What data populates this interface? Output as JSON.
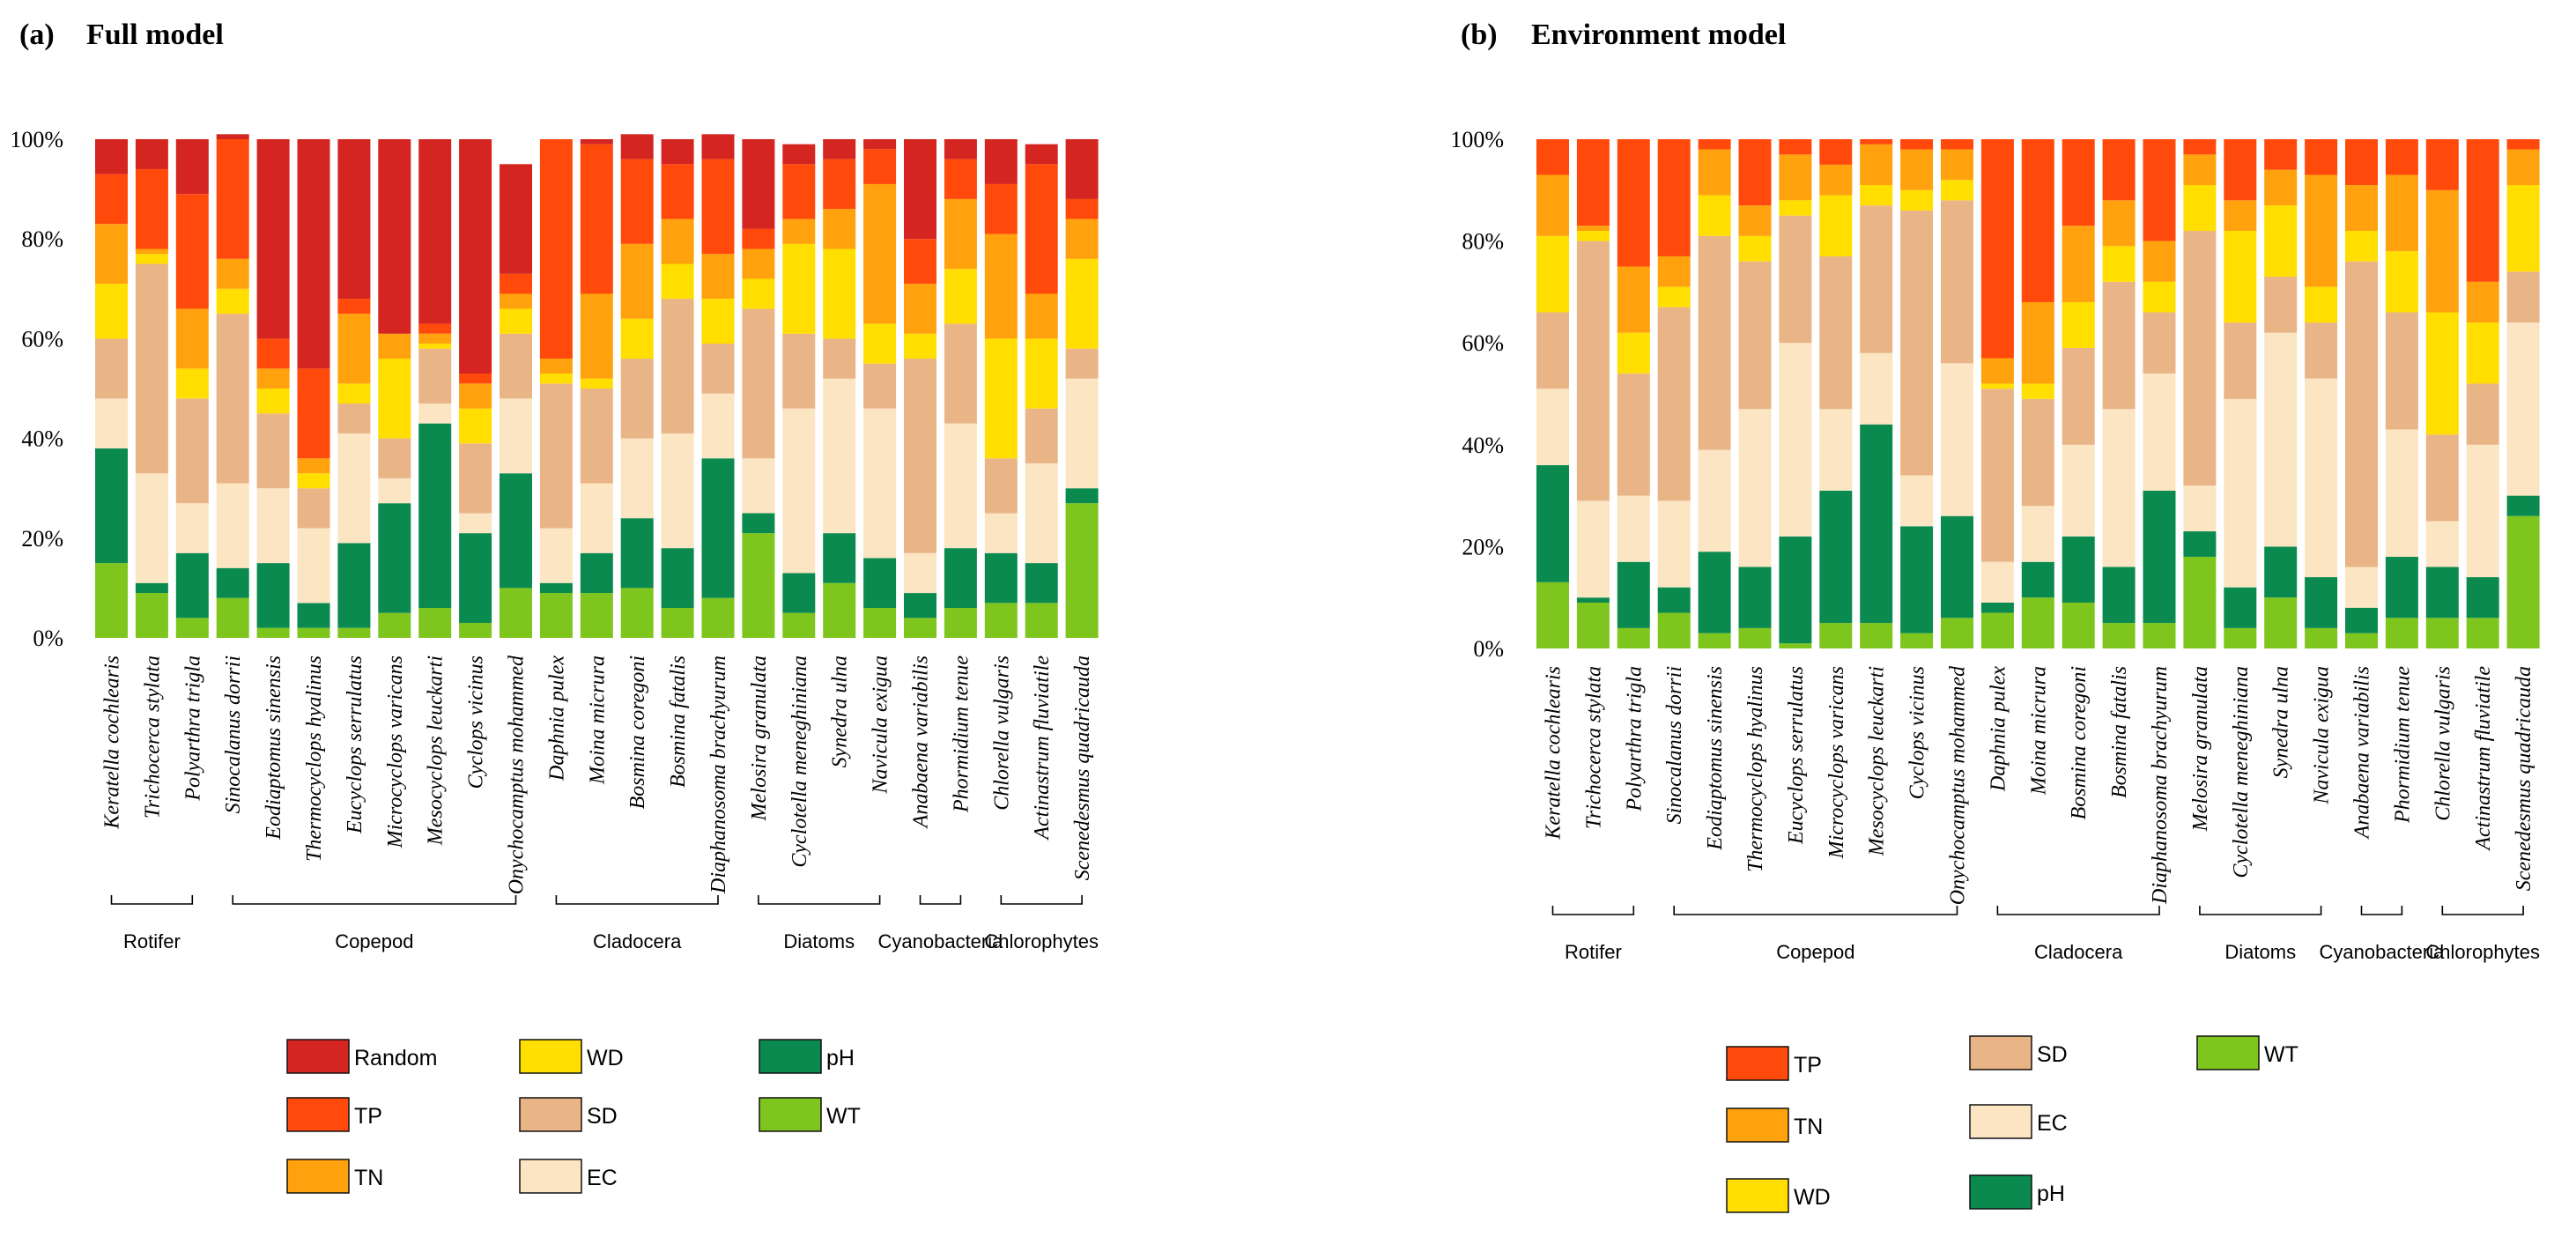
{
  "chart_data": [
    {
      "type": "bar",
      "stacked": true,
      "panel_label": "(a)",
      "title": "Full model",
      "ylim": [
        0,
        100
      ],
      "yticks": [
        "0%",
        "20%",
        "40%",
        "60%",
        "80%",
        "100%"
      ],
      "categories": [
        "Keratella cochlearis",
        "Trichocerca stylata",
        "Polyarthra trigla",
        "Sinocalanus dorrii",
        "Eodiaptomus sinensis",
        "Thermocyclops hyalinus",
        "Eucyclops serrulatus",
        "Microcyclops varicans",
        "Mesocyclops leuckarti",
        "Cyclops vicinus",
        "Onychocamptus mohammed",
        "Daphnia pulex",
        "Moina micrura",
        "Bosmina coregoni",
        "Bosmina fatalis",
        "Diaphanosoma brachyurum",
        "Melosira granulata",
        "Cyclotella meneghiniana",
        "Synedra ulna",
        "Navicula exigua",
        "Anabaena variabilis",
        "Phormidium tenue",
        "Chlorella vulgaris",
        "Actinastrum fluviatile",
        "Scenedesmus quadricauda"
      ],
      "groups": [
        {
          "name": "Rotifer",
          "start": 0,
          "end": 2
        },
        {
          "name": "Copepod",
          "start": 3,
          "end": 10
        },
        {
          "name": "Cladocera",
          "start": 11,
          "end": 15
        },
        {
          "name": "Diatoms",
          "start": 16,
          "end": 19
        },
        {
          "name": "Cyanobacteria",
          "start": 20,
          "end": 21
        },
        {
          "name": "Chlorophytes",
          "start": 22,
          "end": 24
        }
      ],
      "series": [
        {
          "name": "WT",
          "color": "#7ec51e",
          "values": [
            15,
            9,
            4,
            8,
            2,
            2,
            2,
            5,
            6,
            3,
            10,
            9,
            9,
            10,
            6,
            8,
            21,
            5,
            11,
            6,
            4,
            6,
            7,
            7,
            27
          ]
        },
        {
          "name": "pH",
          "color": "#0b8a4f",
          "values": [
            23,
            2,
            13,
            6,
            13,
            5,
            17,
            22,
            37,
            18,
            23,
            2,
            8,
            14,
            12,
            28,
            4,
            8,
            10,
            10,
            5,
            12,
            10,
            8,
            3
          ]
        },
        {
          "name": "EC",
          "color": "#fbe5c3",
          "values": [
            10,
            22,
            10,
            17,
            15,
            15,
            22,
            5,
            4,
            4,
            15,
            11,
            14,
            16,
            23,
            13,
            11,
            33,
            31,
            30,
            8,
            25,
            8,
            20,
            22
          ]
        },
        {
          "name": "SD",
          "color": "#e9b587",
          "values": [
            12,
            42,
            21,
            34,
            15,
            8,
            6,
            8,
            11,
            14,
            13,
            29,
            19,
            16,
            27,
            10,
            30,
            15,
            8,
            9,
            39,
            20,
            11,
            11,
            6
          ]
        },
        {
          "name": "WD",
          "color": "#ffde00",
          "values": [
            11,
            2,
            6,
            5,
            5,
            3,
            4,
            16,
            1,
            7,
            5,
            2,
            2,
            8,
            7,
            9,
            6,
            18,
            18,
            8,
            5,
            11,
            24,
            14,
            18
          ]
        },
        {
          "name": "TN",
          "color": "#ffa20d",
          "values": [
            12,
            1,
            12,
            6,
            4,
            3,
            14,
            5,
            2,
            5,
            3,
            3,
            17,
            15,
            9,
            9,
            6,
            5,
            8,
            28,
            10,
            14,
            21,
            9,
            8
          ]
        },
        {
          "name": "TP",
          "color": "#ff4a0c",
          "values": [
            10,
            16,
            23,
            24,
            6,
            18,
            3,
            0,
            2,
            2,
            4,
            44,
            30,
            17,
            11,
            19,
            4,
            11,
            10,
            7,
            9,
            8,
            10,
            26,
            4
          ]
        },
        {
          "name": "Random",
          "color": "#d42520",
          "values": [
            7,
            6,
            11,
            1,
            40,
            46,
            32,
            39,
            37,
            47,
            22,
            0,
            1,
            5,
            5,
            5,
            18,
            4,
            4,
            2,
            20,
            4,
            9,
            4,
            12
          ]
        }
      ],
      "legend": [
        "Random",
        "WD",
        "pH",
        "TP",
        "SD",
        "WT",
        "TN",
        "EC"
      ]
    },
    {
      "type": "bar",
      "stacked": true,
      "panel_label": "(b)",
      "title": "Environment model",
      "ylim": [
        0,
        100
      ],
      "yticks": [
        "0%",
        "20%",
        "40%",
        "60%",
        "80%",
        "100%"
      ],
      "categories": [
        "Keratella  cochlearis",
        "Trichocerca stylata",
        "Polyarthra  trigla",
        "Sinocalanus  dorrii",
        "Eodiaptomus  sinensis",
        "Thermocyclops  hyalinus",
        "Eucyclops  serrulatus",
        "Microcyclops  varicans",
        "Mesocyclops  leuckarti",
        "Cyclops  vicinus",
        "Onychocamptus  mohammed",
        "Daphnia  pulex",
        "Moina  micrura",
        "Bosmina coregoni",
        "Bosmina fatalis",
        "Diaphanosoma brachyurum",
        "Melosira granulata",
        "Cyclotella meneghiniana",
        "Synedra ulna",
        "Navicula exigua",
        "Anabaena variabilis",
        "Phormidium tenue",
        "Chlorella vulgaris",
        "Actinastrum fluviatile",
        "Scenedesmus quadricauda"
      ],
      "groups": [
        {
          "name": "Rotifer",
          "start": 0,
          "end": 2
        },
        {
          "name": "Copepod",
          "start": 3,
          "end": 10
        },
        {
          "name": "Cladocera",
          "start": 11,
          "end": 15
        },
        {
          "name": "Diatoms",
          "start": 16,
          "end": 19
        },
        {
          "name": "Cyanobacteria",
          "start": 20,
          "end": 21
        },
        {
          "name": "Chlorophytes",
          "start": 22,
          "end": 24
        }
      ],
      "series": [
        {
          "name": "WT",
          "color": "#7ec51e",
          "values": [
            13,
            9,
            4,
            7,
            3,
            4,
            1,
            5,
            5,
            3,
            6,
            7,
            10,
            9,
            5,
            5,
            18,
            4,
            10,
            4,
            3,
            6,
            6,
            6,
            26
          ]
        },
        {
          "name": "pH",
          "color": "#0b8a4f",
          "values": [
            23,
            1,
            13,
            5,
            16,
            12,
            21,
            26,
            39,
            21,
            20,
            2,
            7,
            13,
            11,
            26,
            5,
            8,
            10,
            10,
            5,
            12,
            10,
            8,
            4
          ]
        },
        {
          "name": "EC",
          "color": "#fbe5c3",
          "values": [
            15,
            19,
            13,
            17,
            20,
            31,
            38,
            16,
            14,
            10,
            30,
            8,
            11,
            18,
            31,
            23,
            9,
            37,
            42,
            39,
            8,
            25,
            9,
            26,
            34
          ]
        },
        {
          "name": "SD",
          "color": "#e9b587",
          "values": [
            15,
            51,
            24,
            38,
            42,
            29,
            25,
            30,
            29,
            52,
            32,
            34,
            21,
            19,
            25,
            12,
            50,
            15,
            11,
            11,
            60,
            23,
            17,
            12,
            10
          ]
        },
        {
          "name": "WD",
          "color": "#ffde00",
          "values": [
            15,
            2,
            8,
            4,
            8,
            5,
            3,
            12,
            4,
            4,
            4,
            1,
            3,
            9,
            7,
            6,
            9,
            18,
            14,
            7,
            6,
            12,
            24,
            12,
            17
          ]
        },
        {
          "name": "TN",
          "color": "#ffa20d",
          "values": [
            12,
            1,
            13,
            6,
            9,
            6,
            9,
            6,
            8,
            8,
            6,
            5,
            16,
            15,
            9,
            8,
            6,
            6,
            7,
            22,
            9,
            15,
            24,
            8,
            7
          ]
        },
        {
          "name": "TP",
          "color": "#ff4a0c",
          "values": [
            7,
            17,
            25,
            23,
            2,
            13,
            3,
            5,
            1,
            2,
            2,
            43,
            32,
            17,
            12,
            20,
            3,
            12,
            6,
            7,
            9,
            7,
            10,
            28,
            2
          ]
        }
      ],
      "legend": [
        "TP",
        "SD",
        "WT",
        "TN",
        "EC",
        "WD",
        "pH"
      ]
    }
  ]
}
